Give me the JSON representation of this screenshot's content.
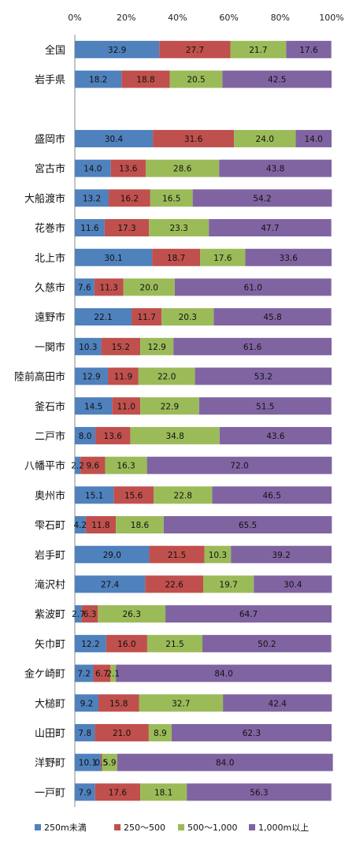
{
  "chart_data": {
    "type": "bar",
    "orientation": "horizontal",
    "stacked": true,
    "percent": true,
    "title": "",
    "xlabel": "",
    "ylabel": "",
    "xlim": [
      0,
      100
    ],
    "x_ticks": [
      "0%",
      "20%",
      "40%",
      "60%",
      "80%",
      "100%"
    ],
    "grid": false,
    "legend_position": "bottom",
    "categories": [
      "全国",
      "岩手県",
      "",
      "盛岡市",
      "宮古市",
      "大船渡市",
      "花巻市",
      "北上市",
      "久慈市",
      "遠野市",
      "一関市",
      "陸前高田市",
      "釜石市",
      "二戸市",
      "八幡平市",
      "奥州市",
      "雫石町",
      "岩手町",
      "滝沢村",
      "紫波町",
      "矢巾町",
      "金ケ崎町",
      "大槌町",
      "山田町",
      "洋野町",
      "一戸町"
    ],
    "series": [
      {
        "name": "250m未満",
        "color": "#4f81bd",
        "values": [
          32.9,
          18.2,
          null,
          30.4,
          14.0,
          13.2,
          11.6,
          30.1,
          7.6,
          22.1,
          10.3,
          12.9,
          14.5,
          8.0,
          2.2,
          15.1,
          4.2,
          29.0,
          27.4,
          2.7,
          12.2,
          7.2,
          9.2,
          7.8,
          10.1,
          7.9
        ]
      },
      {
        "name": "250～500",
        "color": "#c0504d",
        "values": [
          27.7,
          18.8,
          null,
          31.6,
          13.6,
          16.2,
          17.3,
          18.7,
          11.3,
          11.7,
          15.2,
          11.9,
          11.0,
          13.6,
          9.6,
          15.6,
          11.8,
          21.5,
          22.6,
          6.3,
          16.0,
          6.7,
          15.8,
          21.0,
          0.5,
          17.6
        ]
      },
      {
        "name": "500～1,000",
        "color": "#9bbb59",
        "values": [
          21.7,
          20.5,
          null,
          24.0,
          28.6,
          16.5,
          23.3,
          17.6,
          20.0,
          20.3,
          12.9,
          22.0,
          22.9,
          34.8,
          16.3,
          22.8,
          18.6,
          10.3,
          19.7,
          26.3,
          21.5,
          2.1,
          32.7,
          8.9,
          5.9,
          18.1
        ]
      },
      {
        "name": "1,000m以上",
        "color": "#8064a2",
        "values": [
          17.6,
          42.5,
          null,
          14.0,
          43.8,
          54.2,
          47.7,
          33.6,
          61.0,
          45.8,
          61.6,
          53.2,
          51.5,
          43.6,
          72.0,
          46.5,
          65.5,
          39.2,
          30.4,
          64.7,
          50.2,
          84.0,
          42.4,
          62.3,
          84.0,
          56.3
        ]
      }
    ]
  }
}
